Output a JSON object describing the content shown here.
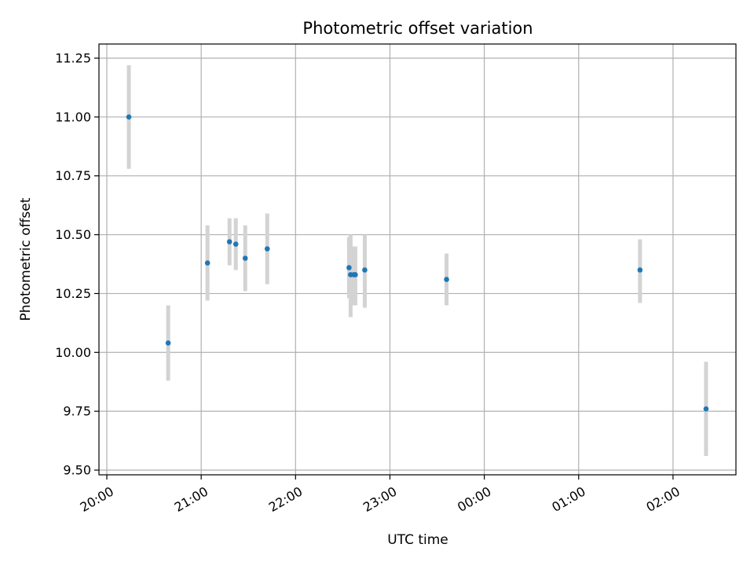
{
  "chart_data": {
    "type": "scatter",
    "title": "Photometric offset variation",
    "xlabel": "UTC time",
    "ylabel": "Photometric offset",
    "x_format": "HH:MM",
    "x_start": "20:00",
    "xlim": [
      "19:55",
      "02:40"
    ],
    "ylim": [
      9.48,
      11.31
    ],
    "grid": true,
    "x_ticks": [
      "20:00",
      "21:00",
      "22:00",
      "23:00",
      "00:00",
      "01:00",
      "02:00"
    ],
    "y_ticks": [
      "9.50",
      "9.75",
      "10.00",
      "10.25",
      "10.50",
      "10.75",
      "11.00",
      "11.25"
    ],
    "y_tick_values": [
      9.5,
      9.75,
      10.0,
      10.25,
      10.5,
      10.75,
      11.0,
      11.25
    ],
    "colors": {
      "point": "#1f77b4",
      "errorbar": "#d3d3d3",
      "grid": "#b0b0b0"
    },
    "points": [
      {
        "x": "20:14",
        "y": 11.0,
        "y_low": 10.78,
        "y_high": 11.22
      },
      {
        "x": "20:39",
        "y": 10.04,
        "y_low": 9.88,
        "y_high": 10.2
      },
      {
        "x": "21:04",
        "y": 10.38,
        "y_low": 10.22,
        "y_high": 10.54
      },
      {
        "x": "21:18",
        "y": 10.47,
        "y_low": 10.37,
        "y_high": 10.57
      },
      {
        "x": "21:22",
        "y": 10.46,
        "y_low": 10.35,
        "y_high": 10.57
      },
      {
        "x": "21:28",
        "y": 10.4,
        "y_low": 10.26,
        "y_high": 10.54
      },
      {
        "x": "21:42",
        "y": 10.44,
        "y_low": 10.29,
        "y_high": 10.59
      },
      {
        "x": "22:34",
        "y": 10.36,
        "y_low": 10.23,
        "y_high": 10.49
      },
      {
        "x": "22:35",
        "y": 10.33,
        "y_low": 10.15,
        "y_high": 10.5
      },
      {
        "x": "22:37",
        "y": 10.33,
        "y_low": 10.2,
        "y_high": 10.45
      },
      {
        "x": "22:38",
        "y": 10.33,
        "y_low": 10.2,
        "y_high": 10.45
      },
      {
        "x": "22:44",
        "y": 10.35,
        "y_low": 10.19,
        "y_high": 10.5
      },
      {
        "x": "23:36",
        "y": 10.31,
        "y_low": 10.2,
        "y_high": 10.42
      },
      {
        "x": "01:39",
        "y": 10.35,
        "y_low": 10.21,
        "y_high": 10.48
      },
      {
        "x": "02:21",
        "y": 9.76,
        "y_low": 9.56,
        "y_high": 9.96
      }
    ]
  }
}
